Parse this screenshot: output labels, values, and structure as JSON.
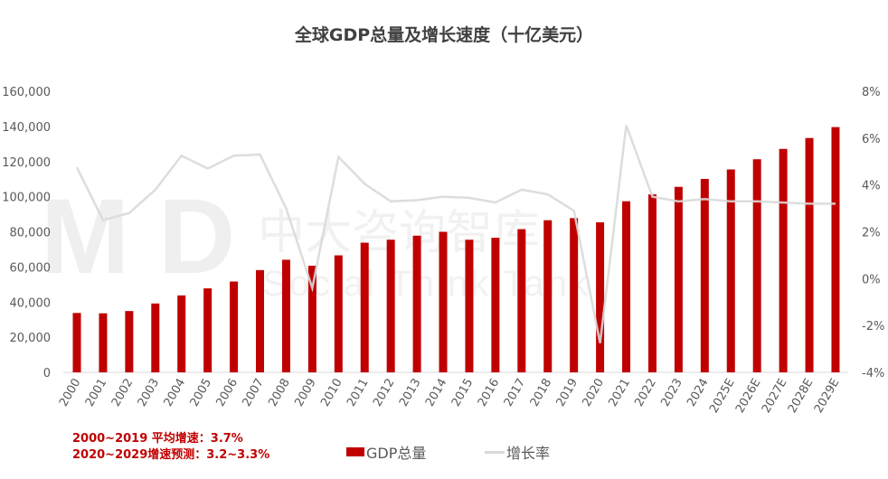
{
  "chart_data": {
    "type": "bar+line",
    "title": "全球GDP总量及增长速度（十亿美元）",
    "categories": [
      "2000",
      "2001",
      "2002",
      "2003",
      "2004",
      "2005",
      "2006",
      "2007",
      "2008",
      "2009",
      "2010",
      "2011",
      "2012",
      "2013",
      "2014",
      "2015",
      "2016",
      "2017",
      "2018",
      "2019",
      "2020",
      "2021",
      "2022",
      "2023",
      "2024",
      "2025E",
      "2026E",
      "2027E",
      "2028E",
      "2029E"
    ],
    "series": [
      {
        "name": "GDP总量",
        "type": "bar",
        "axis": "left",
        "color": "#c00000",
        "values": [
          33800,
          33600,
          34900,
          39200,
          43800,
          47800,
          51700,
          58200,
          64100,
          60700,
          66600,
          73800,
          75500,
          77800,
          80000,
          75500,
          76600,
          81500,
          86600,
          87800,
          85400,
          97400,
          101300,
          105600,
          110100,
          115500,
          121300,
          127200,
          133400,
          139600
        ]
      },
      {
        "name": "增长率",
        "type": "line",
        "axis": "right",
        "color": "#d9d9d9",
        "values": [
          4.75,
          2.5,
          2.8,
          3.8,
          5.25,
          4.7,
          5.25,
          5.3,
          3.0,
          -0.4,
          5.2,
          4.05,
          3.3,
          3.35,
          3.5,
          3.45,
          3.25,
          3.8,
          3.6,
          2.9,
          -2.75,
          6.55,
          3.5,
          3.3,
          3.4,
          3.3,
          3.3,
          3.25,
          3.2,
          3.2
        ]
      }
    ],
    "left_axis": {
      "range": [
        0,
        160000
      ],
      "ticks": [
        "0",
        "20,000",
        "40,000",
        "60,000",
        "80,000",
        "100,000",
        "120,000",
        "140,000",
        "160,000"
      ]
    },
    "right_axis": {
      "range": [
        -4,
        8
      ],
      "ticks": [
        "-4%",
        "-2%",
        "0%",
        "2%",
        "4%",
        "6%",
        "8%"
      ]
    },
    "grid": false,
    "legend_position": "bottom",
    "annotations": [
      "2000~2019 平均增速：3.7%",
      "2020~2029增速预测：3.2~3.3%"
    ]
  },
  "watermark": {
    "logo": "MD",
    "cn": "中大咨询智库",
    "en": "Social Think Tank"
  }
}
